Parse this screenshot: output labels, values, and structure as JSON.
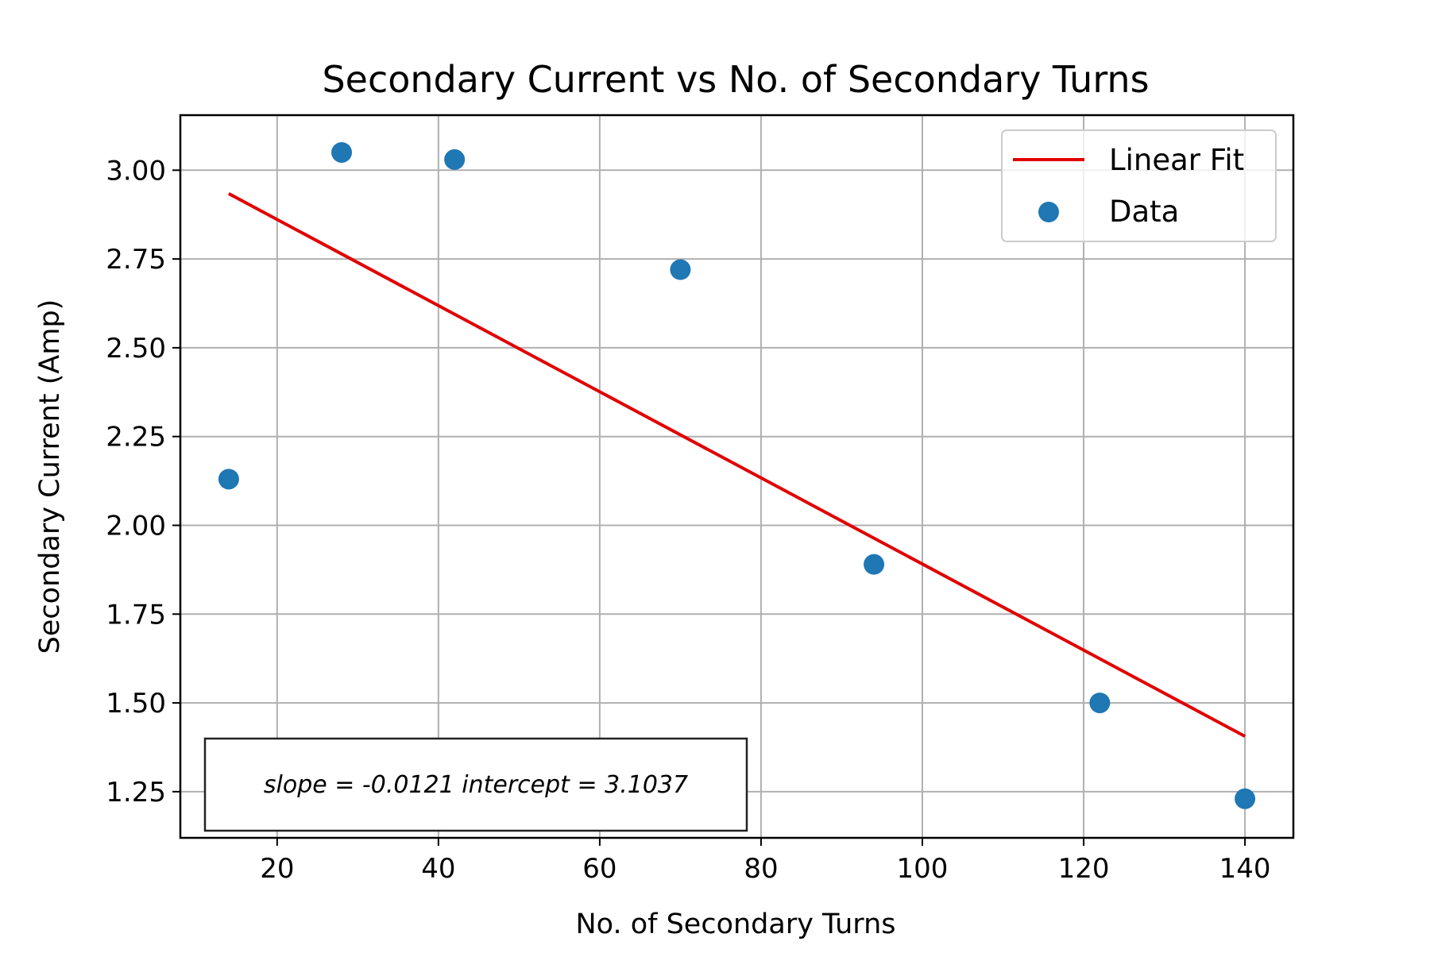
{
  "chart_data": {
    "type": "scatter",
    "title": "Secondary Current vs No. of Secondary Turns",
    "xlabel": "No. of Secondary Turns",
    "ylabel": "Secondary Current (Amp)",
    "xlim": [
      8,
      146
    ],
    "ylim": [
      1.12,
      3.155
    ],
    "xticks": [
      20,
      40,
      60,
      80,
      100,
      120,
      140
    ],
    "yticks": [
      1.25,
      1.5,
      1.75,
      2.0,
      2.25,
      2.5,
      2.75,
      3.0
    ],
    "ytick_labels": [
      "1.25",
      "1.50",
      "1.75",
      "2.00",
      "2.25",
      "2.50",
      "2.75",
      "3.00"
    ],
    "grid": true,
    "legend_position": "top-right",
    "series": [
      {
        "name": "Data",
        "kind": "scatter",
        "color": "#1f77b4",
        "x": [
          14,
          28,
          42,
          70,
          94,
          122,
          140
        ],
        "y": [
          2.13,
          3.05,
          3.03,
          2.72,
          1.89,
          1.5,
          1.23
        ]
      },
      {
        "name": "Linear Fit",
        "kind": "line",
        "color": "#e00000",
        "x": [
          14,
          140
        ],
        "y": [
          2.934,
          1.406
        ]
      }
    ],
    "annotation": "slope = -0.0121 intercept = 3.1037"
  }
}
